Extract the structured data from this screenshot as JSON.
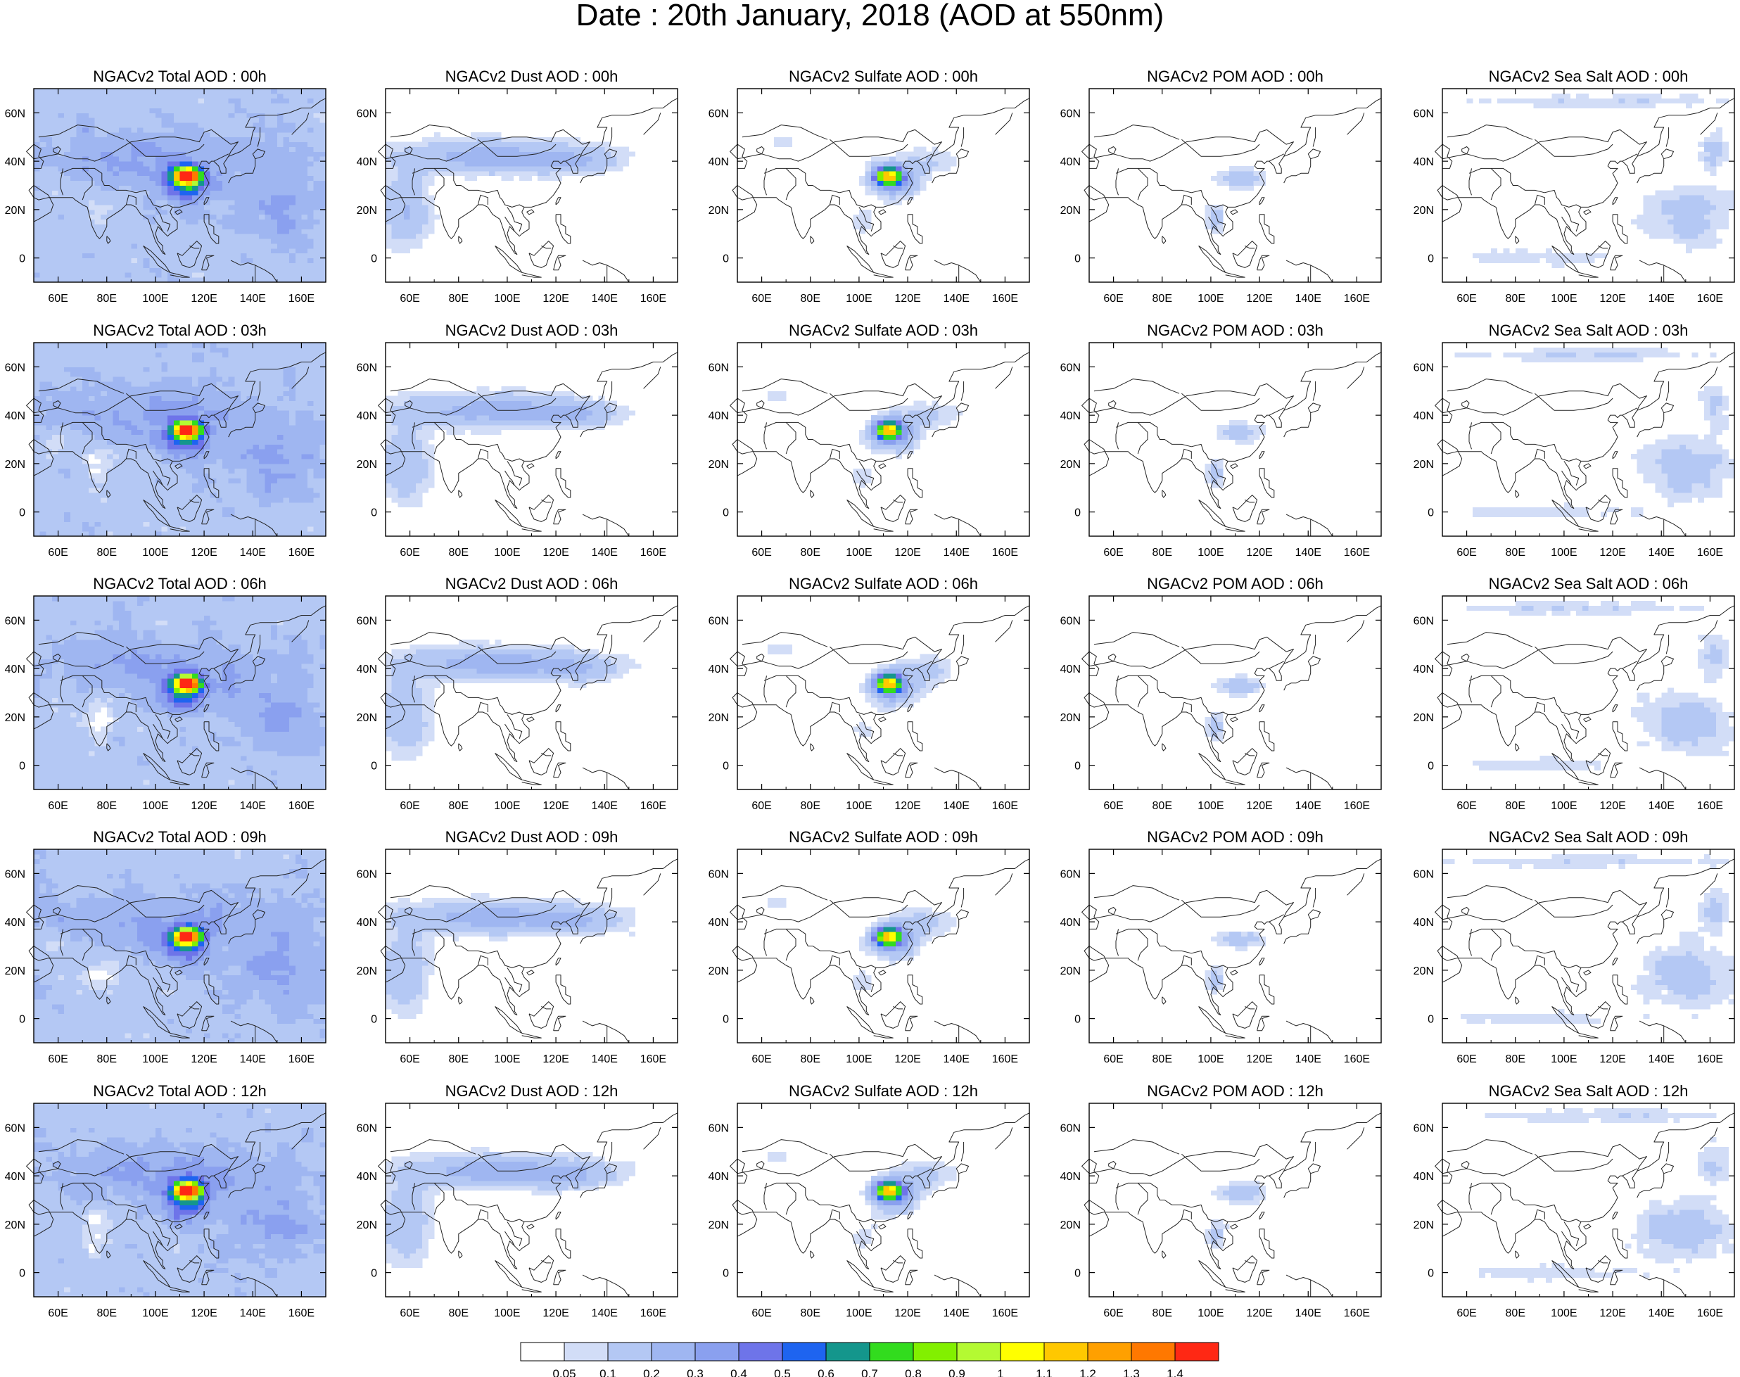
{
  "title": "Date : 20th January, 2018 (AOD at 550nm)",
  "x_ticks": [
    "60E",
    "80E",
    "100E",
    "120E",
    "140E",
    "160E"
  ],
  "y_ticks": [
    "60N",
    "40N",
    "20N",
    "0"
  ],
  "species": [
    "Total",
    "Dust",
    "Sulfate",
    "POM",
    "Sea Salt"
  ],
  "hours": [
    "00h",
    "03h",
    "06h",
    "09h",
    "12h"
  ],
  "panel_titles": [
    [
      "NGACv2 Total AOD : 00h",
      "NGACv2 Dust AOD : 00h",
      "NGACv2 Sulfate AOD : 00h",
      "NGACv2 POM AOD : 00h",
      "NGACv2 Sea Salt AOD : 00h"
    ],
    [
      "NGACv2 Total AOD : 03h",
      "NGACv2 Dust AOD : 03h",
      "NGACv2 Sulfate AOD : 03h",
      "NGACv2 POM AOD : 03h",
      "NGACv2 Sea Salt AOD : 03h"
    ],
    [
      "NGACv2 Total AOD : 06h",
      "NGACv2 Dust AOD : 06h",
      "NGACv2 Sulfate AOD : 06h",
      "NGACv2 POM AOD : 06h",
      "NGACv2 Sea Salt AOD : 06h"
    ],
    [
      "NGACv2 Total AOD : 09h",
      "NGACv2 Dust AOD : 09h",
      "NGACv2 Sulfate AOD : 09h",
      "NGACv2 POM AOD : 09h",
      "NGACv2 Sea Salt  AOD : 09h"
    ],
    [
      "NGACv2 Total AOD  : 12h",
      "NGACv2 Dust AOD : 12h",
      "NGACv2 Sulfate AOD : 12h",
      "NGACv2 POM  AOD : 12h",
      "NGACv2 Sea Salt  AOD : 12h"
    ]
  ],
  "colorbar": {
    "colors": [
      "#ffffff",
      "#d2ddf7",
      "#b4c8f4",
      "#9fb6f1",
      "#8aa0ef",
      "#6e74e9",
      "#1e64f0",
      "#14968c",
      "#32dc1e",
      "#82f000",
      "#b4fa32",
      "#ffff00",
      "#ffc800",
      "#ffa000",
      "#ff7800",
      "#ff2814"
    ],
    "labels": [
      "0.05",
      "0.1",
      "0.2",
      "0.3",
      "0.4",
      "0.5",
      "0.6",
      "0.7",
      "0.8",
      "0.9",
      "1",
      "1.1",
      "1.2",
      "1.3",
      "1.4"
    ]
  },
  "chart_data": {
    "type": "heatmap",
    "title": "Date : 20th January, 2018 (AOD at 550nm)",
    "x_range_deg_e": [
      50,
      170
    ],
    "y_range_deg_n": [
      -10,
      70
    ],
    "rows": [
      "00h",
      "03h",
      "06h",
      "09h",
      "12h"
    ],
    "columns": [
      "Total",
      "Dust",
      "Sulfate",
      "POM",
      "Sea Salt"
    ],
    "levels": [
      0.05,
      0.1,
      0.2,
      0.3,
      0.4,
      0.5,
      0.6,
      0.7,
      0.8,
      0.9,
      1,
      1.1,
      1.2,
      1.3,
      1.4
    ],
    "features": {
      "Total": [
        {
          "kind": "background",
          "lon": [
            50,
            170
          ],
          "lat": [
            -10,
            70
          ],
          "level": 1
        },
        {
          "kind": "band",
          "lon": [
            50,
            150
          ],
          "lat": [
            30,
            55
          ],
          "level": 2
        },
        {
          "kind": "plume",
          "lon": [
            106,
            122
          ],
          "lat": [
            30,
            38
          ],
          "peak_aod": 1.4
        },
        {
          "kind": "ocean",
          "lon": [
            120,
            170
          ],
          "lat": [
            0,
            35
          ],
          "level": 2
        }
      ],
      "Dust": [
        {
          "kind": "band",
          "lon": [
            50,
            145
          ],
          "lat": [
            35,
            48
          ],
          "level": 2
        },
        {
          "kind": "band",
          "lon": [
            50,
            75
          ],
          "lat": [
            5,
            35
          ],
          "level": 1
        },
        {
          "kind": "patch",
          "lon": [
            75,
            110
          ],
          "lat": [
            35,
            45
          ],
          "level": 1
        }
      ],
      "Sulfate": [
        {
          "kind": "plume",
          "lon": [
            103,
            122
          ],
          "lat": [
            28,
            38
          ],
          "peak_aod": 0.9
        },
        {
          "kind": "patch",
          "lon": [
            110,
            140
          ],
          "lat": [
            35,
            48
          ],
          "level": 2
        },
        {
          "kind": "patch",
          "lon": [
            60,
            75
          ],
          "lat": [
            45,
            52
          ],
          "level": 1
        }
      ],
      "POM": [
        {
          "kind": "patch",
          "lon": [
            100,
            125
          ],
          "lat": [
            28,
            38
          ],
          "level": 2
        },
        {
          "kind": "patch",
          "lon": [
            98,
            108
          ],
          "lat": [
            10,
            22
          ],
          "level": 2
        }
      ],
      "Sea Salt": [
        {
          "kind": "ocean",
          "lon": [
            120,
            170
          ],
          "lat": [
            0,
            35
          ],
          "level": 1
        },
        {
          "kind": "band",
          "lon": [
            55,
            165
          ],
          "lat": [
            55,
            68
          ],
          "level": 1
        },
        {
          "kind": "patch",
          "lon": [
            150,
            170
          ],
          "lat": [
            38,
            55
          ],
          "level": 2
        }
      ]
    }
  }
}
